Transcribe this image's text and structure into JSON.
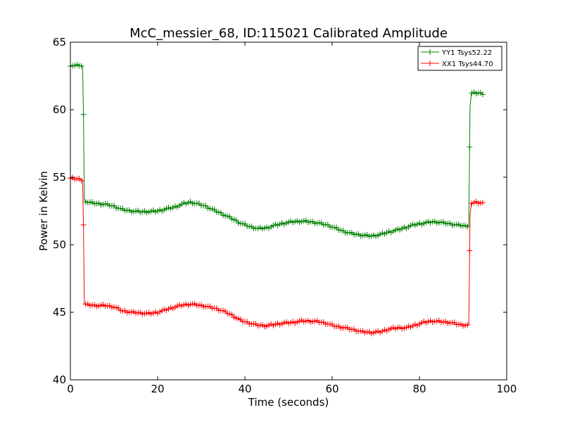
{
  "chart_data": {
    "type": "line",
    "title": "McC_messier_68, ID:115021 Calibrated Amplitude",
    "xlabel": "Time (seconds)",
    "ylabel": "Power in Kelvin",
    "xlim": [
      0,
      100
    ],
    "ylim": [
      40,
      65
    ],
    "xticks": [
      0,
      20,
      40,
      60,
      80,
      100
    ],
    "yticks": [
      40,
      45,
      50,
      55,
      60,
      65
    ],
    "grid": false,
    "legend_position": "top-right",
    "marker": "+",
    "series": [
      {
        "name": "YY1 Tsys52.22",
        "color": "#008000",
        "x": [
          0,
          1,
          2,
          2.8,
          3.0,
          3.2,
          4,
          6,
          8,
          10,
          12,
          14,
          16,
          18,
          20,
          22,
          24,
          26,
          27.5,
          29,
          31,
          33,
          35,
          37,
          39,
          41,
          43,
          45,
          47,
          49,
          51,
          53,
          55,
          57,
          59,
          61,
          63,
          65,
          67,
          69,
          71,
          73,
          75,
          77,
          79,
          81,
          83,
          85,
          87,
          89,
          90.5,
          91.3,
          91.6,
          91.9,
          93,
          94.5
        ],
        "values": [
          63.3,
          63.25,
          63.3,
          63.2,
          59.6,
          53.3,
          53.15,
          53.05,
          53.0,
          52.85,
          52.6,
          52.5,
          52.45,
          52.45,
          52.5,
          52.65,
          52.8,
          53.05,
          53.15,
          53.05,
          52.85,
          52.55,
          52.25,
          51.95,
          51.6,
          51.35,
          51.2,
          51.25,
          51.45,
          51.6,
          51.7,
          51.75,
          51.7,
          51.6,
          51.45,
          51.2,
          50.95,
          50.8,
          50.7,
          50.65,
          50.75,
          50.95,
          51.1,
          51.3,
          51.5,
          51.6,
          51.7,
          51.65,
          51.55,
          51.45,
          51.4,
          51.4,
          60.2,
          61.2,
          61.25,
          61.2
        ]
      },
      {
        "name": "XX1 Tsys44.70",
        "color": "#ff0000",
        "x": [
          0,
          1,
          2,
          2.8,
          3.0,
          3.2,
          4,
          6,
          8,
          10,
          12,
          14,
          16,
          18,
          20,
          22,
          24,
          26,
          27.5,
          29,
          31,
          33,
          35,
          37,
          39,
          41,
          43,
          45,
          47,
          49,
          51,
          53,
          55,
          57,
          59,
          61,
          63,
          65,
          67,
          69,
          71,
          73,
          75,
          77,
          79,
          81,
          83,
          85,
          87,
          89,
          90.5,
          91.3,
          91.6,
          91.9,
          93,
          94.5
        ],
        "values": [
          54.9,
          54.9,
          54.85,
          54.8,
          51.5,
          45.6,
          45.55,
          45.5,
          45.5,
          45.4,
          45.1,
          45.0,
          44.95,
          44.9,
          45.0,
          45.2,
          45.4,
          45.55,
          45.6,
          45.55,
          45.45,
          45.3,
          45.1,
          44.8,
          44.4,
          44.2,
          44.05,
          44.0,
          44.1,
          44.2,
          44.25,
          44.35,
          44.35,
          44.3,
          44.15,
          43.95,
          43.85,
          43.7,
          43.55,
          43.5,
          43.55,
          43.75,
          43.85,
          43.85,
          44.05,
          44.25,
          44.35,
          44.3,
          44.25,
          44.1,
          44.05,
          44.05,
          52.2,
          53.1,
          53.15,
          53.1
        ]
      }
    ]
  }
}
